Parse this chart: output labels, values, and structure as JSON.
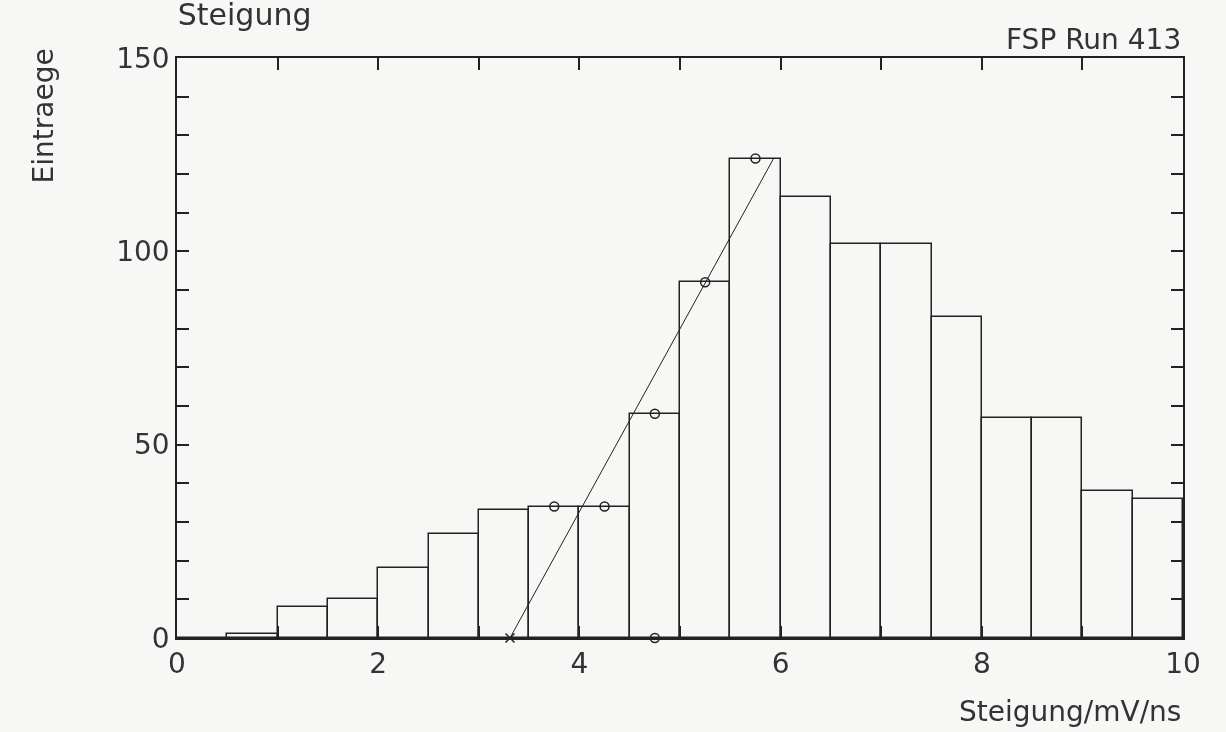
{
  "chart_data": {
    "type": "histogram",
    "title": "Steigung",
    "subtitle": "FSP Run 413",
    "xlabel": "Steigung/mV/ns",
    "ylabel": "Eintraege",
    "color": "#222222",
    "bins": [
      0,
      0.5,
      1,
      1.5,
      2,
      2.5,
      3,
      3.5,
      4,
      4.5,
      5,
      5.5,
      6,
      6.5,
      7,
      7.5,
      8,
      8.5,
      9,
      9.5,
      10
    ],
    "values": [
      0,
      1,
      8,
      10,
      18,
      27,
      33,
      34,
      34,
      58,
      92,
      124,
      114,
      102,
      102,
      83,
      57,
      57,
      38,
      36
    ],
    "series": [
      {
        "type": "line",
        "color": "#222222",
        "x": [
          3.31,
          5.93
        ],
        "values": [
          0,
          124
        ]
      },
      {
        "type": "scatter",
        "color": "#222222",
        "marker": "circle",
        "x": [
          3.75,
          4.25,
          4.75,
          4.75,
          5.25,
          5.75
        ],
        "values": [
          34,
          34,
          58,
          0,
          92,
          124
        ]
      },
      {
        "type": "scatter",
        "color": "#222222",
        "marker": "cross",
        "x": [
          3.31
        ],
        "values": [
          0
        ]
      }
    ],
    "xlim": [
      0,
      10
    ],
    "ylim": [
      0,
      150
    ],
    "xticks": [
      0,
      {
        "value": 1,
        "label": null
      },
      2,
      {
        "value": 3,
        "label": null
      },
      4,
      {
        "value": 5,
        "label": null
      },
      6,
      {
        "value": 7,
        "label": null
      },
      8,
      {
        "value": 9,
        "label": null
      },
      10
    ],
    "yticks": [
      0,
      {
        "value": 10,
        "label": null
      },
      {
        "value": 20,
        "label": null
      },
      {
        "value": 30,
        "label": null
      },
      {
        "value": 40,
        "label": null
      },
      50,
      {
        "value": 60,
        "label": null
      },
      {
        "value": 70,
        "label": null
      },
      {
        "value": 80,
        "label": null
      },
      {
        "value": 90,
        "label": null
      },
      100,
      {
        "value": 110,
        "label": null
      },
      {
        "value": 120,
        "label": null
      },
      {
        "value": 130,
        "label": null
      },
      {
        "value": 140,
        "label": null
      },
      150
    ],
    "grid": false,
    "legend": false
  }
}
